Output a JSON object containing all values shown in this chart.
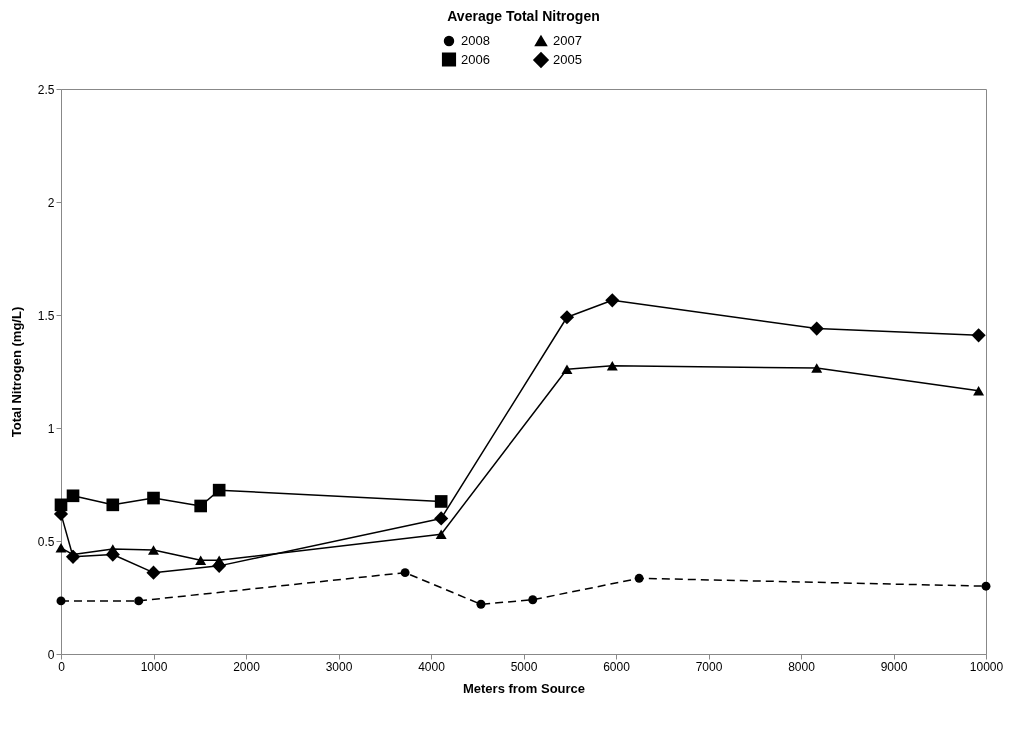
{
  "chart_data": {
    "type": "line",
    "title": "Average Total Nitrogen",
    "xlabel": "Meters from Source",
    "ylabel": "Total Nitrogen (mg/L)",
    "xlim": [
      0,
      10000
    ],
    "xticks": [
      0,
      1000,
      2000,
      3000,
      4000,
      5000,
      6000,
      7000,
      8000,
      9000,
      10000
    ],
    "ylim": [
      0,
      2.5
    ],
    "yticks": [
      0,
      0.5,
      1,
      1.5,
      2,
      2.5
    ],
    "grid": false,
    "legend": "top",
    "series": [
      {
        "name": "2008",
        "color": "#000000",
        "marker": "circle",
        "line_style": "dashed",
        "x": [
          0,
          840,
          3720,
          4540,
          5100,
          6250,
          10000
        ],
        "values": [
          0.235,
          0.235,
          0.36,
          0.22,
          0.24,
          0.335,
          0.3
        ]
      },
      {
        "name": "2007",
        "color": "#000000",
        "marker": "triangle",
        "line_style": "solid",
        "x": [
          0,
          130,
          560,
          1000,
          1510,
          1710,
          4110,
          5470,
          5960,
          8170,
          9920
        ],
        "values": [
          0.47,
          0.44,
          0.465,
          0.46,
          0.415,
          0.415,
          0.53,
          1.26,
          1.275,
          1.265,
          1.165
        ]
      },
      {
        "name": "2006",
        "color": "#000000",
        "marker": "square",
        "line_style": "solid",
        "x": [
          0,
          130,
          560,
          1000,
          1510,
          1710,
          4110
        ],
        "values": [
          0.66,
          0.7,
          0.66,
          0.69,
          0.655,
          0.725,
          0.675
        ]
      },
      {
        "name": "2005",
        "color": "#000000",
        "marker": "diamond",
        "line_style": "solid",
        "x": [
          0,
          130,
          560,
          1000,
          1710,
          4110,
          5470,
          5960,
          8170,
          9920
        ],
        "values": [
          0.62,
          0.43,
          0.44,
          0.36,
          0.39,
          0.6,
          1.49,
          1.565,
          1.44,
          1.41
        ]
      }
    ]
  }
}
